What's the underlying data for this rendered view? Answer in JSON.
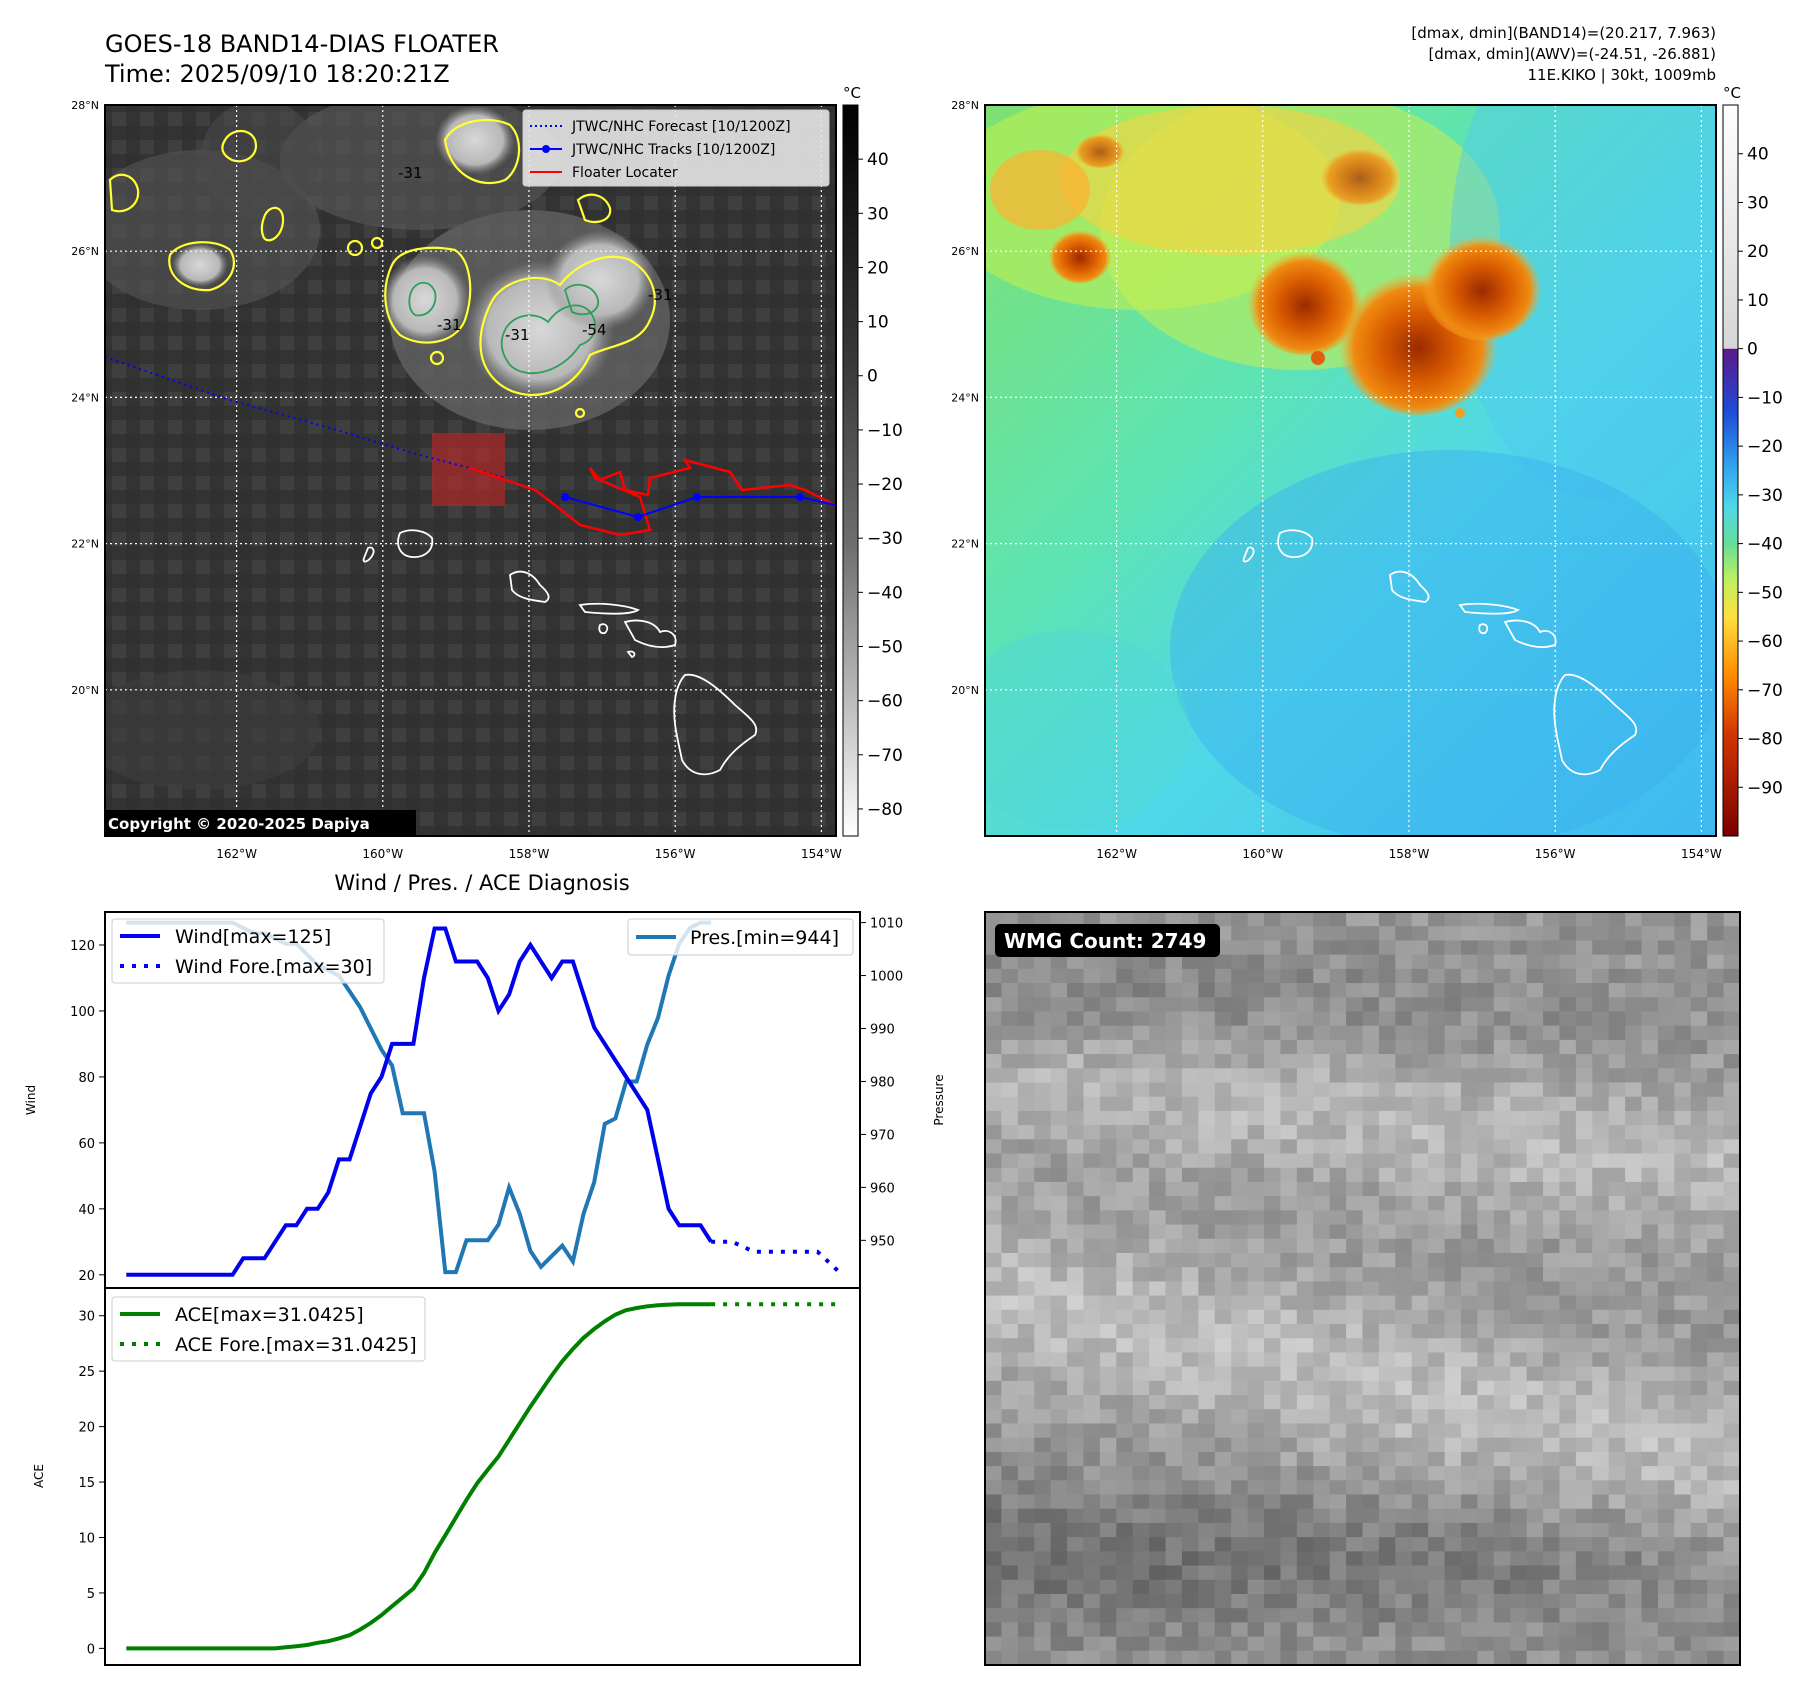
{
  "header": {
    "title": "GOES-18 BAND14-DIAS FLOATER",
    "time": "Time: 2025/09/10 18:20:21Z",
    "stat_band14": "[dmax, dmin](BAND14)=(20.217, 7.963)",
    "stat_awv": "[dmax, dmin](AWV)=(-24.51, -26.881)",
    "storm_info": "11E.KIKO | 30kt, 1009mb"
  },
  "map": {
    "lat_labels": [
      "28°N",
      "26°N",
      "24°N",
      "22°N",
      "20°N"
    ],
    "lon_labels": [
      "162°W",
      "160°W",
      "158°W",
      "156°W",
      "154°W"
    ],
    "lat_values": [
      28,
      26,
      24,
      22,
      20
    ],
    "lon_values": [
      -162,
      -160,
      -158,
      -156,
      -154
    ],
    "extent": {
      "lon_min": -163.8,
      "lon_max": -153.8,
      "lat_min": 18.0,
      "lat_max": 28.0
    },
    "legend": {
      "forecast": "JTWC/NHC Forecast [10/1200Z]",
      "tracks": "JTWC/NHC Tracks [10/1200Z]",
      "locater": "Floater Locater"
    },
    "contour_labels": [
      "-31",
      "-31",
      "-31",
      "-54",
      "-31"
    ],
    "copyright": "Copyright © 2020-2025 Dapiya",
    "colors": {
      "forecast": "#0000ff",
      "track": "#0000ff",
      "locater": "#ff0000",
      "contour_warm": "#ffff33",
      "contour_cold": "#2ca05a"
    }
  },
  "colorbar_gray": {
    "unit": "°C",
    "ticks": [
      "40",
      "30",
      "20",
      "10",
      "0",
      "−10",
      "−20",
      "−30",
      "−40",
      "−50",
      "−60",
      "−70",
      "−80"
    ],
    "tick_values": [
      40,
      30,
      20,
      10,
      0,
      -10,
      -20,
      -30,
      -40,
      -50,
      -60,
      -70,
      -80
    ],
    "range": [
      -85,
      50
    ]
  },
  "colorbar_color": {
    "unit": "°C",
    "ticks": [
      "40",
      "30",
      "20",
      "10",
      "0",
      "−10",
      "−20",
      "−30",
      "−40",
      "−50",
      "−60",
      "−70",
      "−80",
      "−90"
    ],
    "tick_values": [
      40,
      30,
      20,
      10,
      0,
      -10,
      -20,
      -30,
      -40,
      -50,
      -60,
      -70,
      -80,
      -90
    ],
    "range": [
      -100,
      50
    ]
  },
  "diagnosis": {
    "title": "Wind / Pres. / ACE Diagnosis",
    "wind_label": "Wind",
    "pressure_label": "Pressure",
    "ace_label": "ACE",
    "legend_wind": "Wind[max=125]",
    "legend_wind_fore": "Wind Fore.[max=30]",
    "legend_pres": "Pres.[min=944]",
    "legend_ace": "ACE[max=31.0425]",
    "legend_ace_fore": "ACE Fore.[max=31.0425]",
    "wind_ticks": [
      "120",
      "100",
      "80",
      "60",
      "40",
      "20"
    ],
    "wind_tick_values": [
      120,
      100,
      80,
      60,
      40,
      20
    ],
    "pres_ticks": [
      "1010",
      "1000",
      "990",
      "980",
      "970",
      "960",
      "950"
    ],
    "pres_tick_values": [
      1010,
      1000,
      990,
      980,
      970,
      960,
      950
    ],
    "ace_ticks": [
      "30",
      "25",
      "20",
      "15",
      "10",
      "5",
      "0"
    ],
    "ace_tick_values": [
      30,
      25,
      20,
      15,
      10,
      5,
      0
    ],
    "colors": {
      "wind": "#0000ee",
      "pres": "#1f77b4",
      "ace": "#008000"
    }
  },
  "wmg": {
    "label": "WMG Count: 2749"
  },
  "chart_data": [
    {
      "type": "line",
      "title": "Wind / Pres. / ACE Diagnosis",
      "ylabel": "Wind",
      "ylim": [
        16,
        130
      ],
      "xlim": [
        -2,
        69
      ],
      "series": [
        {
          "name": "Wind[max=125]",
          "x": [
            0,
            10,
            11,
            12,
            13,
            14,
            15,
            16,
            17,
            18,
            19,
            20,
            21,
            22,
            23,
            24,
            25,
            26,
            27,
            28,
            29,
            30,
            31,
            32,
            33,
            34,
            35,
            36,
            37,
            38,
            39,
            40,
            41,
            42,
            43,
            44,
            45,
            46,
            47,
            48,
            49,
            50,
            51,
            52,
            53,
            54,
            55
          ],
          "values": [
            20,
            20,
            25,
            25,
            25,
            30,
            35,
            35,
            40,
            40,
            45,
            55,
            55,
            65,
            75,
            80,
            90,
            90,
            90,
            110,
            125,
            125,
            115,
            115,
            115,
            110,
            100,
            105,
            115,
            120,
            115,
            110,
            115,
            115,
            105,
            95,
            90,
            85,
            80,
            75,
            70,
            55,
            40,
            35,
            35,
            35,
            30
          ]
        },
        {
          "name": "Wind Fore.[max=30]",
          "x": [
            55,
            57,
            59,
            61,
            63,
            65,
            67
          ],
          "values": [
            30,
            30,
            27,
            27,
            27,
            27,
            21
          ]
        },
        {
          "name": "Pres.[min=944]",
          "axis": "right",
          "ylim": [
            941,
            1012
          ],
          "x": [
            0,
            1,
            2,
            3,
            4,
            5,
            6,
            7,
            8,
            9,
            10,
            11,
            12,
            13,
            14,
            15,
            16,
            17,
            18,
            19,
            20,
            21,
            22,
            23,
            24,
            25,
            26,
            27,
            28,
            29,
            30,
            31,
            32,
            33,
            34,
            35,
            36,
            37,
            38,
            39,
            40,
            41,
            42,
            43,
            44,
            45,
            46,
            47,
            48,
            49,
            50,
            51,
            52,
            53,
            54,
            55
          ],
          "values": [
            1010,
            1010,
            1010,
            1010,
            1010,
            1010,
            1010,
            1010,
            1010,
            1010,
            1010,
            1009,
            1008,
            1008,
            1007,
            1006,
            1006,
            1004,
            1002,
            1001,
            1000,
            997,
            994,
            990,
            986,
            983,
            974,
            974,
            974,
            963,
            944,
            944,
            950,
            950,
            950,
            953,
            960,
            955,
            948,
            945,
            947,
            949,
            946,
            955,
            961,
            972,
            973,
            980,
            980,
            987,
            992,
            1000,
            1006,
            1009,
            1010,
            1010
          ]
        }
      ]
    },
    {
      "type": "line",
      "ylabel": "ACE",
      "ylim": [
        -1.5,
        32.5
      ],
      "xlim": [
        -2,
        69
      ],
      "series": [
        {
          "name": "ACE[max=31.0425]",
          "x": [
            0,
            14,
            15,
            16,
            17,
            18,
            19,
            20,
            21,
            22,
            23,
            24,
            25,
            26,
            27,
            28,
            29,
            30,
            31,
            32,
            33,
            34,
            35,
            36,
            37,
            38,
            39,
            40,
            41,
            42,
            43,
            44,
            45,
            46,
            47,
            48,
            49,
            50,
            51,
            52,
            53,
            54,
            55
          ],
          "values": [
            0,
            0,
            0.1,
            0.2,
            0.3,
            0.5,
            0.65,
            0.9,
            1.2,
            1.7,
            2.3,
            3.0,
            3.8,
            4.6,
            5.4,
            6.8,
            8.6,
            10.2,
            11.8,
            13.4,
            14.9,
            16.1,
            17.3,
            18.8,
            20.3,
            21.8,
            23.2,
            24.6,
            25.9,
            27.0,
            28.0,
            28.8,
            29.5,
            30.1,
            30.5,
            30.7,
            30.85,
            30.95,
            31.0,
            31.03,
            31.04,
            31.0425,
            31.0425
          ]
        },
        {
          "name": "ACE Fore.[max=31.0425]",
          "x": [
            55,
            57,
            59,
            61,
            63,
            65,
            67
          ],
          "values": [
            31.0425,
            31.0425,
            31.0425,
            31.0425,
            31.0425,
            31.0425,
            31.0425
          ]
        }
      ]
    }
  ]
}
